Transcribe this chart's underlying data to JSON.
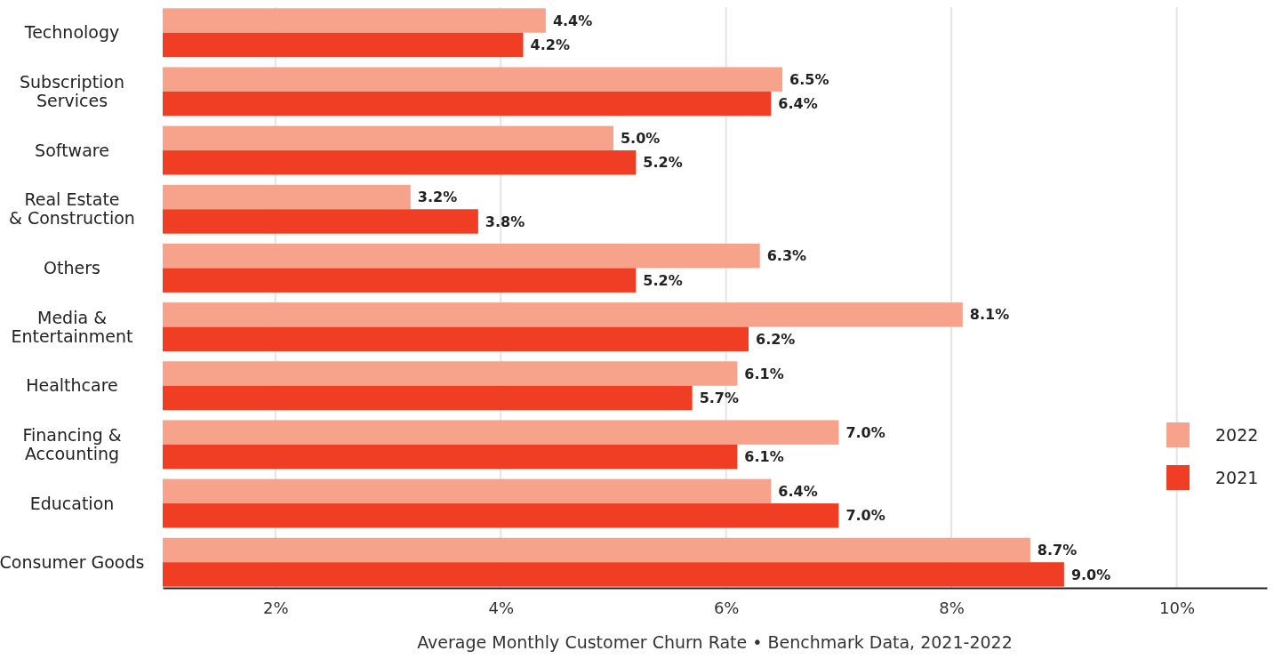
{
  "chart_data": {
    "type": "bar",
    "orientation": "horizontal",
    "xlabel": "Average Monthly Customer Churn Rate • Benchmark Data, 2021-2022",
    "categories": [
      "Technology",
      "Subscription Services",
      "Software",
      "Real Estate & Construction",
      "Others",
      "Media & Entertainment",
      "Healthcare",
      "Financing & Accounting",
      "Education",
      "Consumer Goods"
    ],
    "series": [
      {
        "name": "2022",
        "color": "#f7a38c",
        "values": [
          4.4,
          6.5,
          5.0,
          3.2,
          6.3,
          8.1,
          6.1,
          7.0,
          6.4,
          8.7
        ],
        "value_labels": [
          "4.4%",
          "6.5%",
          "5.0%",
          "3.2%",
          "6.3%",
          "8.1%",
          "6.1%",
          "7.0%",
          "6.4%",
          "8.7%"
        ]
      },
      {
        "name": "2021",
        "color": "#ef3e23",
        "values": [
          4.2,
          6.4,
          5.2,
          3.8,
          5.2,
          6.2,
          5.7,
          6.1,
          7.0,
          9.0
        ],
        "value_labels": [
          "4.2%",
          "6.4%",
          "5.2%",
          "3.8%",
          "5.2%",
          "6.2%",
          "5.7%",
          "6.1%",
          "7.0%",
          "9.0%"
        ]
      }
    ],
    "xlim": [
      1,
      10.8
    ],
    "xticks": [
      {
        "value": 2,
        "label": "2%"
      },
      {
        "value": 4,
        "label": "4%"
      },
      {
        "value": 6,
        "label": "6%"
      },
      {
        "value": 8,
        "label": "8%"
      },
      {
        "value": 10,
        "label": "10%"
      }
    ],
    "grid": "x",
    "legend": "right"
  }
}
